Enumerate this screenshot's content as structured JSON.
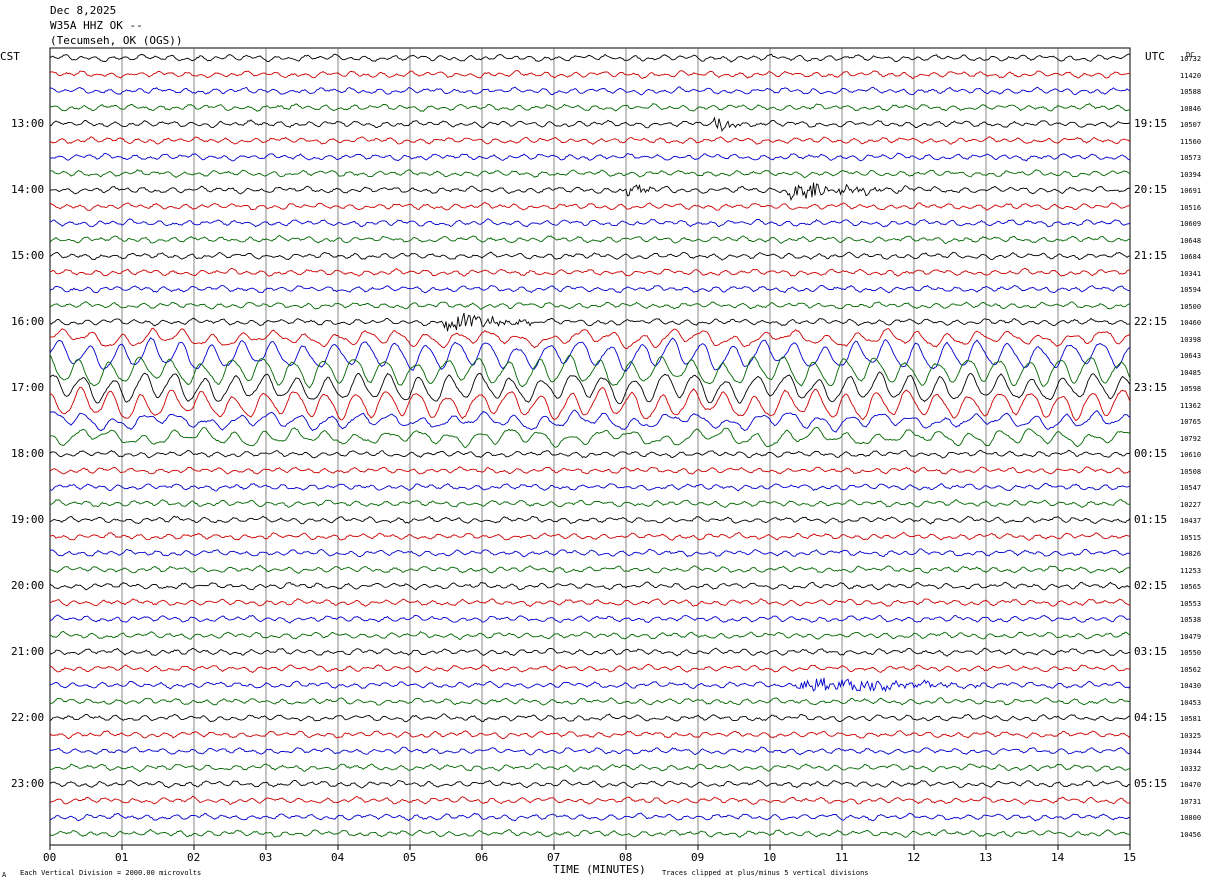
{
  "header": {
    "date": "Dec 8,2025",
    "station": "W35A HHZ OK --",
    "location": "(Tecumseh, OK (OGS))"
  },
  "left_axis_label": "CST",
  "right_axis_label": "UTC",
  "dc_label": "DC",
  "footer": {
    "note_left": "Each Vertical Division = 2000.00 microvolts",
    "note_right": "Traces clipped at plus/minus 5 vertical divisions",
    "corner_mark": "A"
  },
  "colors": {
    "trace_cycle": [
      "#000000",
      "#cc0000",
      "#0000cc",
      "#006600"
    ],
    "grid": "#000000"
  },
  "chart_data": {
    "type": "line",
    "title": "Dec 8,2025 W35A HHZ OK -- (Tecumseh, OK (OGS))",
    "xlabel": "TIME (MINUTES)",
    "xlim": [
      0,
      15
    ],
    "x_ticks": [
      "00",
      "01",
      "02",
      "03",
      "04",
      "05",
      "06",
      "07",
      "08",
      "09",
      "10",
      "11",
      "12",
      "13",
      "14",
      "15"
    ],
    "grid": true,
    "left_time_labels": [
      "13:00",
      "14:00",
      "15:00",
      "16:00",
      "17:00",
      "18:00",
      "19:00",
      "20:00",
      "21:00",
      "22:00",
      "23:00"
    ],
    "right_time_labels": [
      "19:15",
      "20:15",
      "21:15",
      "22:15",
      "23:15",
      "00:15",
      "01:15",
      "02:15",
      "03:15",
      "04:15",
      "05:15"
    ],
    "dc_values": [
      "10732",
      "11420",
      "10588",
      "10846",
      "10507",
      "11560",
      "10573",
      "10394",
      "10691",
      "10516",
      "10609",
      "10648",
      "10684",
      "10341",
      "10594",
      "10500",
      "10460",
      "10398",
      "10643",
      "10485",
      "10598",
      "11362",
      "10765",
      "10792",
      "10610",
      "10508",
      "10547",
      "10227",
      "10437",
      "10515",
      "10826",
      "11253",
      "10565",
      "10553",
      "10538",
      "10479",
      "10550",
      "10562",
      "10430",
      "10453",
      "10581",
      "10325",
      "10344",
      "10332",
      "10470",
      "10731",
      "10800",
      "10456"
    ],
    "events": [
      {
        "trace": 4,
        "start_min": 9.2,
        "end_min": 9.9,
        "amp": 1.2
      },
      {
        "trace": 8,
        "start_min": 7.9,
        "end_min": 8.9,
        "amp": 1.0
      },
      {
        "trace": 8,
        "start_min": 10.2,
        "end_min": 12.3,
        "amp": 2.2
      },
      {
        "trace": 16,
        "start_min": 5.4,
        "end_min": 7.0,
        "amp": 2.0
      },
      {
        "trace": 38,
        "start_min": 10.3,
        "end_min": 13.5,
        "amp": 1.6
      }
    ],
    "teleseism": {
      "traces": [
        17,
        18,
        19,
        20,
        21,
        22,
        23
      ],
      "note": "large long-period surface waves"
    }
  }
}
